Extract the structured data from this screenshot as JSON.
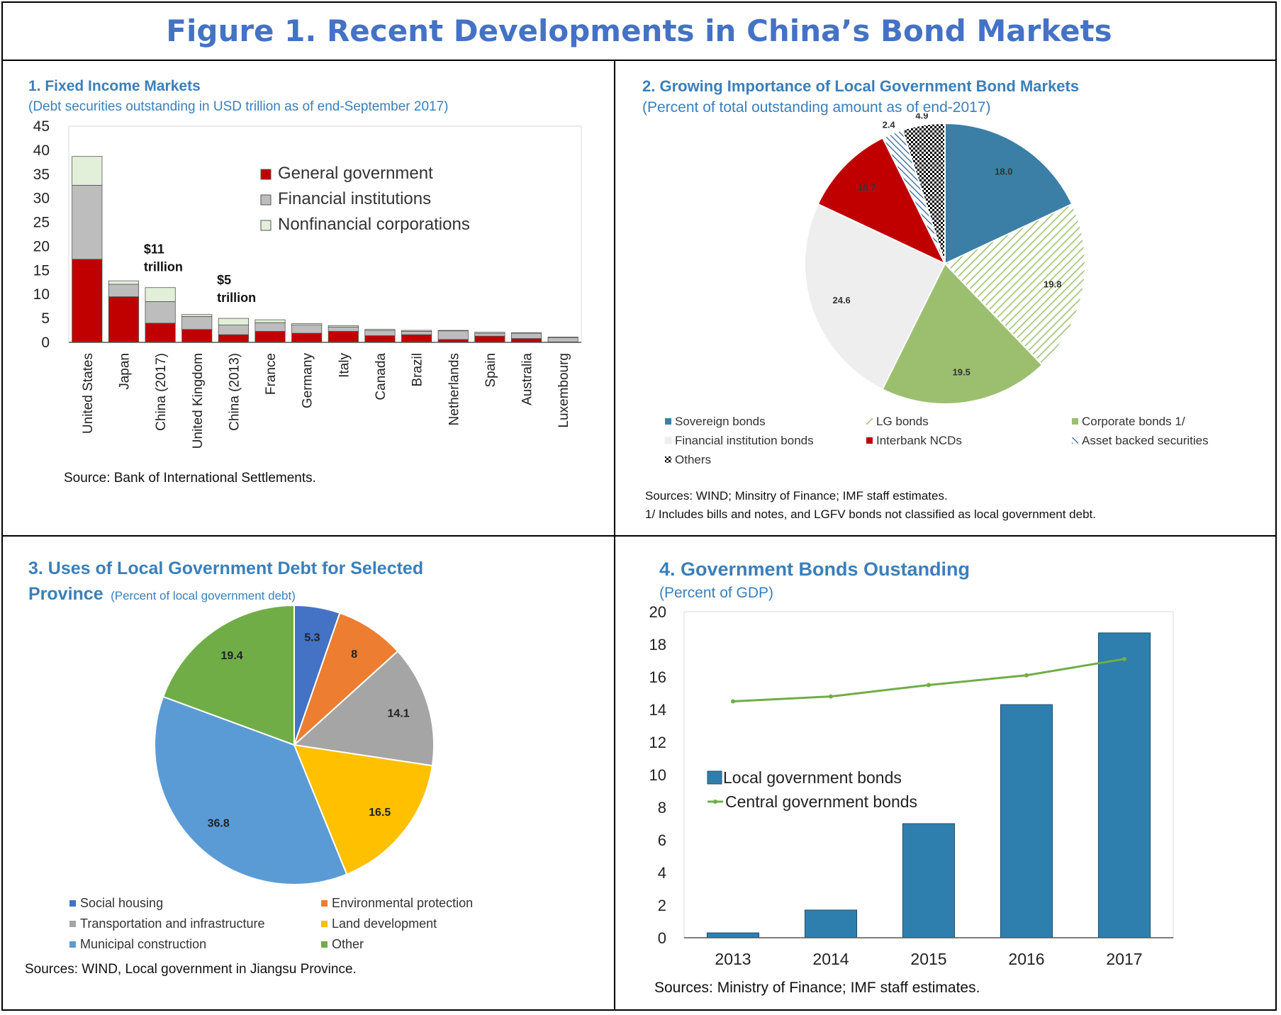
{
  "figure_title": "Figure 1. Recent Developments in China’s Bond Markets",
  "colors": {
    "title": "#4472c4",
    "panel_title": "#3b7fba"
  },
  "chart_data": [
    {
      "type": "bar",
      "stacked": true,
      "title": "1. Fixed Income Markets",
      "subtitle": "(Debt securities outstanding in USD trillion as of end-September 2017)",
      "categories": [
        "United States",
        "Japan",
        "China (2017)",
        "United Kingdom",
        "China (2013)",
        "France",
        "Germany",
        "Italy",
        "Canada",
        "Brazil",
        "Netherlands",
        "Spain",
        "Australia",
        "Luxembourg"
      ],
      "series": [
        {
          "name": "General government",
          "color": "#c00000",
          "pattern": "solid",
          "values": [
            17.3,
            9.5,
            4.0,
            2.7,
            1.6,
            2.3,
            1.9,
            2.3,
            1.4,
            1.6,
            0.6,
            1.3,
            0.8,
            0.1
          ]
        },
        {
          "name": "Financial institutions",
          "color": "#bdbdbd",
          "pattern": "solid",
          "values": [
            15.4,
            2.6,
            4.5,
            2.7,
            2.0,
            1.8,
            1.7,
            0.9,
            1.1,
            0.7,
            1.8,
            0.6,
            1.1,
            0.9
          ]
        },
        {
          "name": "Nonfinancial corporations",
          "color": "#e2f0d9",
          "pattern": "solid",
          "values": [
            6.0,
            0.7,
            2.9,
            0.4,
            1.4,
            0.6,
            0.3,
            0.3,
            0.2,
            0.2,
            0.1,
            0.2,
            0.1,
            0.1
          ]
        }
      ],
      "ylim": [
        0,
        45
      ],
      "yticks": [
        0,
        5,
        10,
        15,
        20,
        25,
        30,
        35,
        40,
        45
      ],
      "legend": "top-right",
      "annotations": [
        {
          "category": "China (2017)",
          "line1": "$11",
          "line2": "trillion"
        },
        {
          "category": "China (2013)",
          "line1": "$5",
          "line2": "trillion"
        }
      ],
      "source": "Source: Bank of International Settlements."
    },
    {
      "type": "pie",
      "title": "2. Growing Importance of Local Government Bond Markets",
      "subtitle": "(Percent of total outstanding amount as of end-2017)",
      "slices": [
        {
          "name": "Sovereign bonds",
          "value": 18.0,
          "label": "18.0",
          "color": "#3b7fa6",
          "pattern": "solid"
        },
        {
          "name": "LG bonds",
          "value": 19.8,
          "label": "19.8",
          "color": "#a9c98a",
          "pattern": "diag"
        },
        {
          "name": "Corporate bonds 1/",
          "value": 19.5,
          "label": "19.5",
          "color": "#9bbf6f",
          "pattern": "solid"
        },
        {
          "name": "Financial institution bonds",
          "value": 24.6,
          "label": "24.6",
          "color": "#eeeeee",
          "pattern": "solid"
        },
        {
          "name": "Interbank NCDs",
          "value": 10.7,
          "label": "10.7",
          "color": "#c00000",
          "pattern": "solid"
        },
        {
          "name": "Asset backed securities",
          "value": 2.4,
          "label": "2.4",
          "color": "#2e5f94",
          "pattern": "stripe"
        },
        {
          "name": "Others",
          "value": 4.9,
          "label": "4.9",
          "color": "#000000",
          "pattern": "check"
        }
      ],
      "legend": "bottom",
      "sources": [
        "Sources: WIND; Minsitry of Finance; IMF staff estimates.",
        "1/ Includes bills and notes, and LGFV bonds not classified as local government debt."
      ]
    },
    {
      "type": "pie",
      "title_line1": "3. Uses of Local Government Debt for Selected",
      "title_line2": "Province",
      "subtitle": "(Percent of local government debt)",
      "slices": [
        {
          "name": "Social housing",
          "value": 5.3,
          "label": "5.3",
          "color": "#4472c4"
        },
        {
          "name": "Environmental protection",
          "value": 8,
          "label": "8",
          "color": "#ed7d31"
        },
        {
          "name": "Transportation and infrastructure",
          "value": 14.1,
          "label": "14.1",
          "color": "#a5a5a5"
        },
        {
          "name": "Land development",
          "value": 16.5,
          "label": "16.5",
          "color": "#ffc000"
        },
        {
          "name": "Municipal construction",
          "value": 36.8,
          "label": "36.8",
          "color": "#5b9bd5"
        },
        {
          "name": "Other",
          "value": 19.4,
          "label": "19.4",
          "color": "#70ad47"
        }
      ],
      "legend": "bottom",
      "source": "Sources: WIND, Local government in Jiangsu Province."
    },
    {
      "type": "bar",
      "title": "4. Government Bonds Oustanding",
      "subtitle": "(Percent of GDP)",
      "categories": [
        "2013",
        "2014",
        "2015",
        "2016",
        "2017"
      ],
      "series": [
        {
          "name": "Local government bonds",
          "kind": "bar",
          "color": "#2e7fae",
          "values": [
            0.3,
            1.7,
            7.0,
            14.3,
            18.7
          ]
        },
        {
          "name": "Central government bonds",
          "kind": "line",
          "color": "#70ad47",
          "values": [
            14.5,
            14.8,
            15.5,
            16.1,
            17.1
          ]
        }
      ],
      "ylim": [
        0,
        20
      ],
      "yticks": [
        0,
        2,
        4,
        6,
        8,
        10,
        12,
        14,
        16,
        18,
        20
      ],
      "legend": "middle-left",
      "source": "Sources: Ministry of Finance; IMF staff estimates."
    }
  ]
}
